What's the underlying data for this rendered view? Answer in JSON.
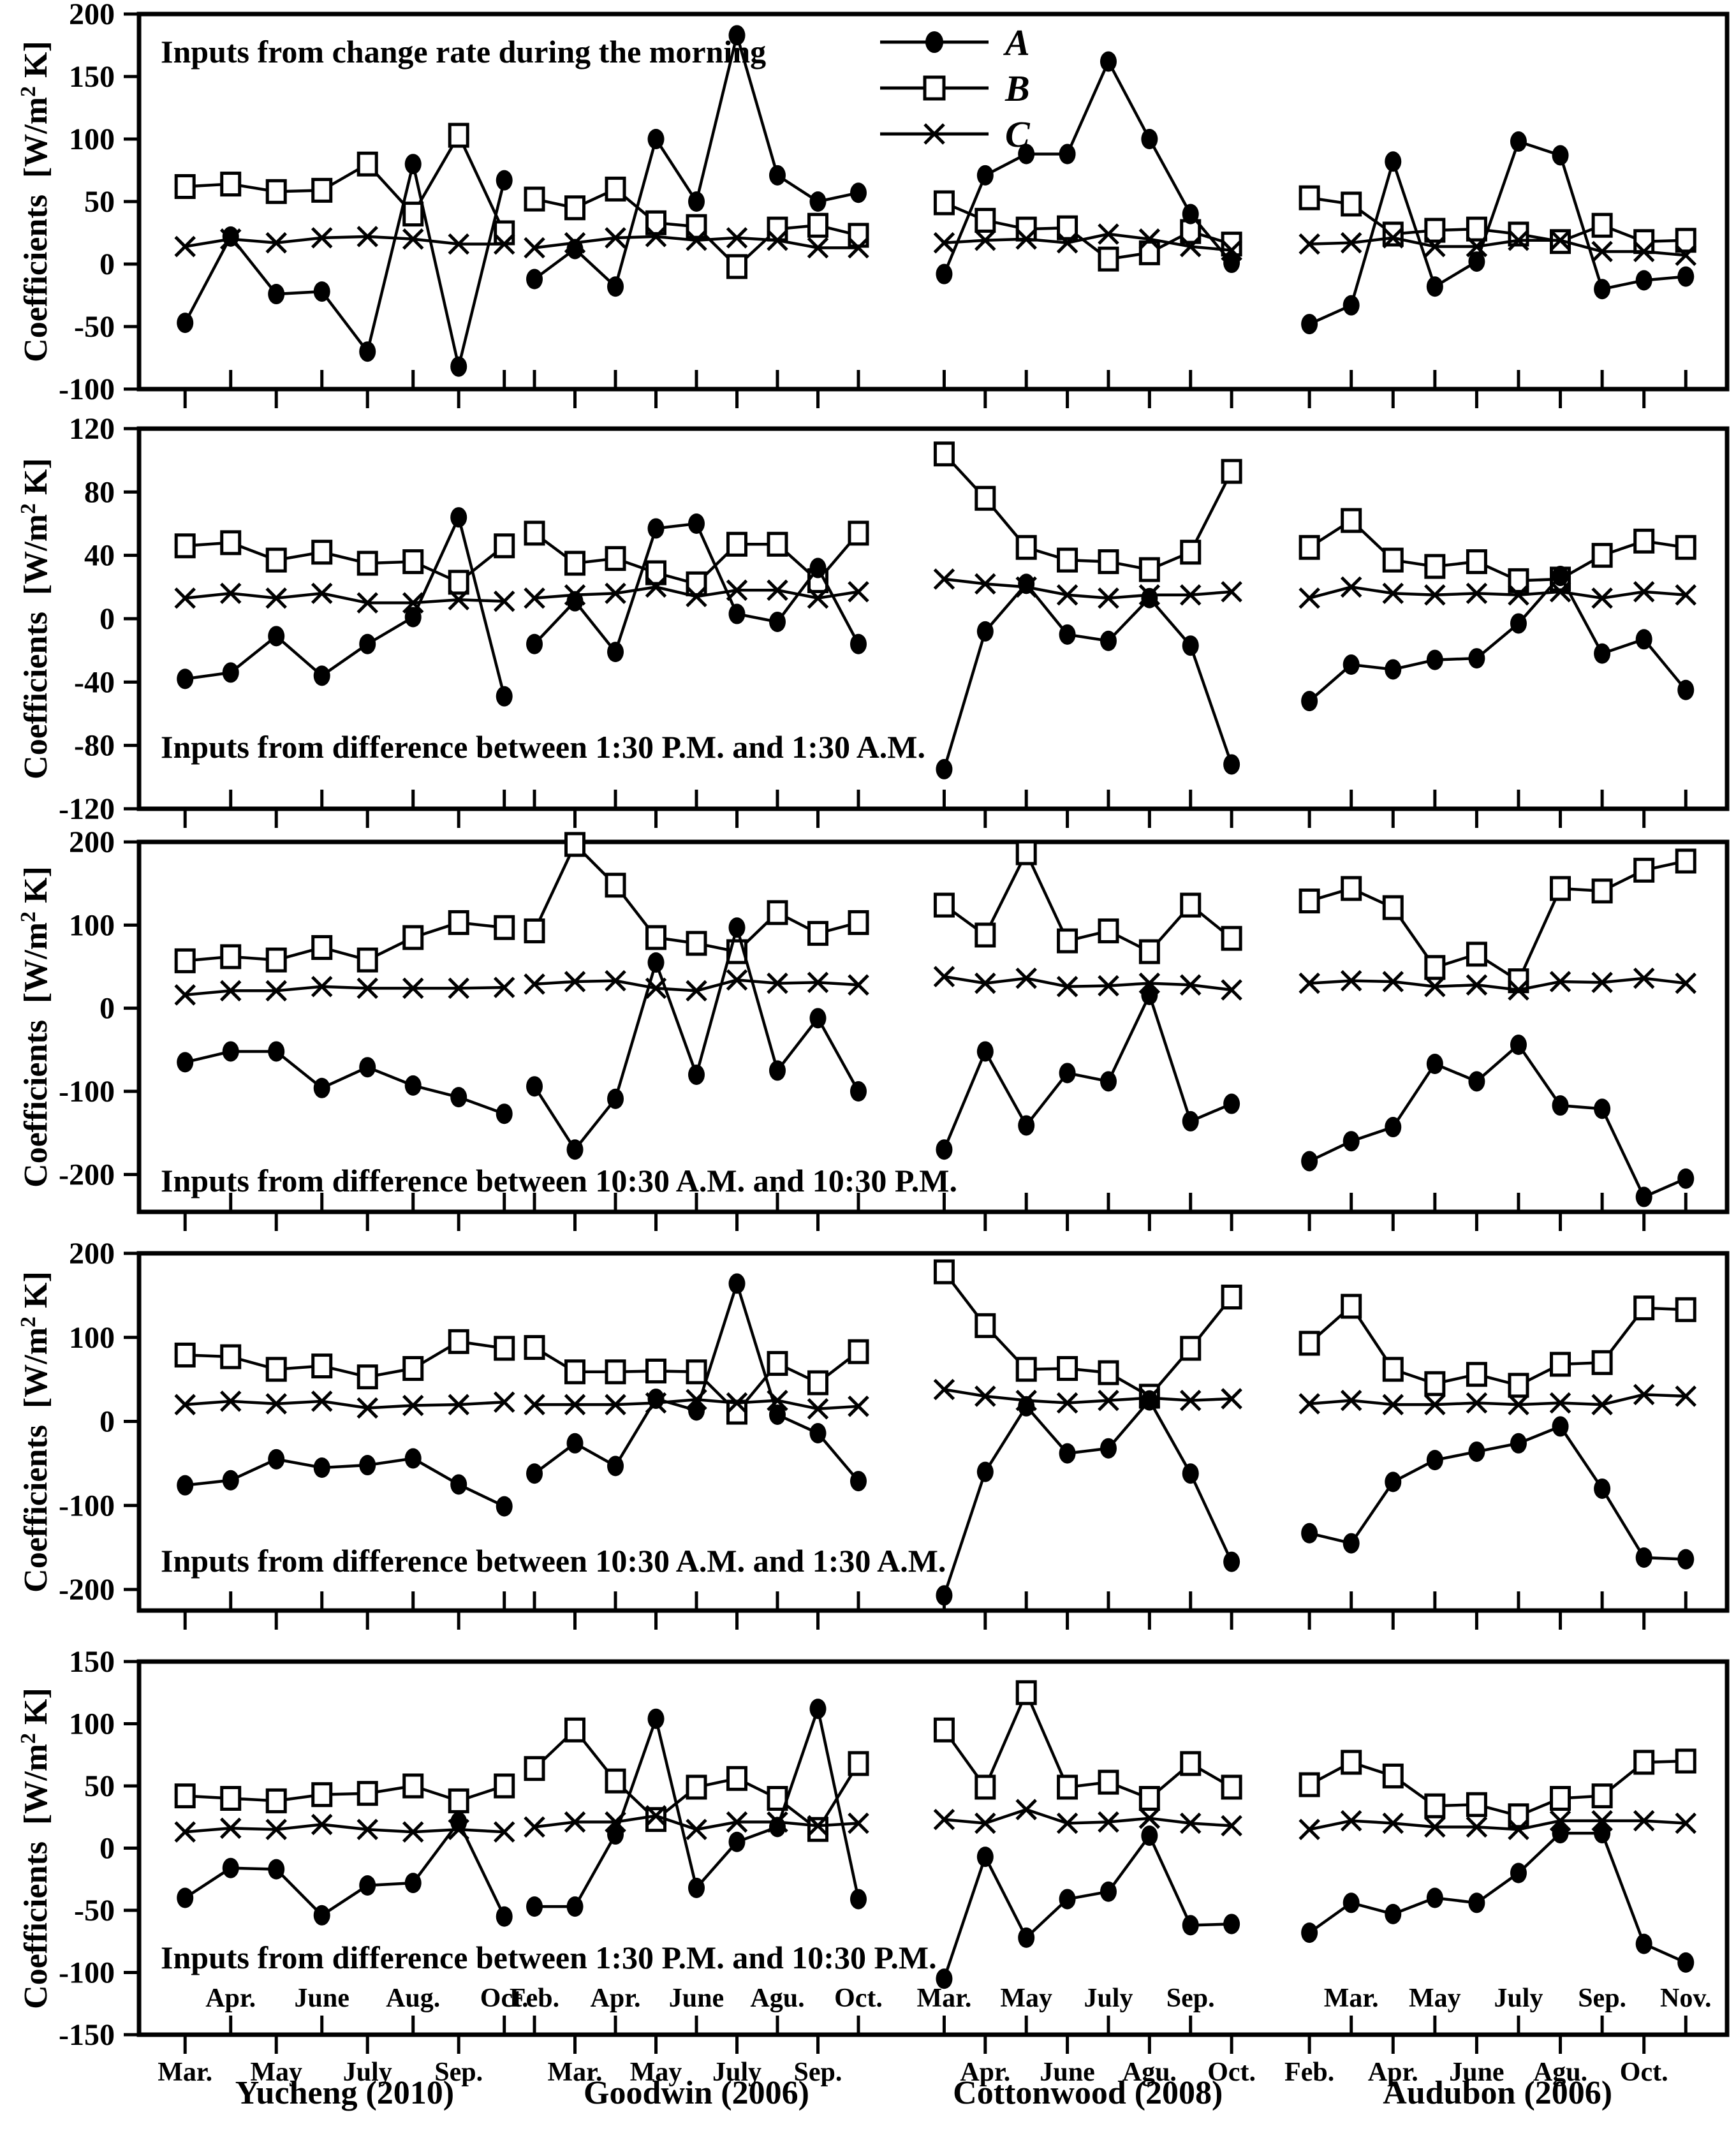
{
  "chart_data": {
    "type": "line",
    "title": "",
    "ylabel": "Coefficients [W/m2 K]",
    "ylabel_parts": {
      "word": "Coefficients",
      "unit_pre": "[W/m",
      "unit_sup": "2",
      "unit_post": " K]"
    },
    "legend_entries": [
      {
        "label": "A",
        "marker": "filled-circle"
      },
      {
        "label": "B",
        "marker": "open-square"
      },
      {
        "label": "C",
        "marker": "x-cross"
      }
    ],
    "colors": {
      "ink": "#000000",
      "paper": "#ffffff"
    },
    "grid": "off",
    "legend_position": "top-right-of-first-panel",
    "sites": [
      {
        "name": "Yucheng (2010)",
        "x0": 0.029,
        "x1": 0.23,
        "months": [
          [
            "Mar.",
            "b"
          ],
          [
            "Apr.",
            "t"
          ],
          [
            "May",
            "b"
          ],
          [
            "June",
            "t"
          ],
          [
            "July",
            "b"
          ],
          [
            "Aug.",
            "t"
          ],
          [
            "Sep.",
            "b"
          ],
          [
            "Oct.",
            "t"
          ]
        ]
      },
      {
        "name": "Goodwin (2006)",
        "x0": 0.249,
        "x1": 0.453,
        "months": [
          [
            "Feb.",
            "t"
          ],
          [
            "Mar.",
            "b"
          ],
          [
            "Apr.",
            "t"
          ],
          [
            "May",
            "b"
          ],
          [
            "June",
            "t"
          ],
          [
            "July",
            "b"
          ],
          [
            "Agu.",
            "t"
          ],
          [
            "Sep.",
            "b"
          ],
          [
            "Oct.",
            "t"
          ]
        ]
      },
      {
        "name": "Cottonwood (2008)",
        "x0": 0.507,
        "x1": 0.688,
        "months": [
          [
            "Mar.",
            "t"
          ],
          [
            "Apr.",
            "b"
          ],
          [
            "May",
            "t"
          ],
          [
            "June",
            "b"
          ],
          [
            "July",
            "t"
          ],
          [
            "Agu.",
            "b"
          ],
          [
            "Sep.",
            "t"
          ],
          [
            "Oct.",
            "b"
          ]
        ]
      },
      {
        "name": "Audubon (2006)",
        "x0": 0.737,
        "x1": 0.974,
        "months": [
          [
            "Feb.",
            "b"
          ],
          [
            "Mar.",
            "t"
          ],
          [
            "Apr.",
            "b"
          ],
          [
            "May",
            "t"
          ],
          [
            "June",
            "b"
          ],
          [
            "July",
            "t"
          ],
          [
            "Agu.",
            "b"
          ],
          [
            "Sep.",
            "t"
          ],
          [
            "Oct.",
            "b"
          ],
          [
            "Nov.",
            "t"
          ]
        ]
      }
    ],
    "panels": [
      {
        "caption": "Inputs from change rate during the morning",
        "ylim": [
          -100,
          200
        ],
        "yticks": [
          200,
          150,
          100,
          50,
          0,
          -50,
          -100
        ],
        "series": [
          {
            "A": [
              -47,
              22,
              -24,
              -22,
              -70,
              80,
              -82,
              67
            ],
            "B": [
              62,
              64,
              58,
              59,
              80,
              40,
              103,
              25
            ],
            "C": [
              14,
              20,
              17,
              21,
              22,
              20,
              16,
              16
            ]
          },
          {
            "A": [
              -12,
              12,
              -18,
              100,
              50,
              183,
              71,
              50,
              57
            ],
            "B": [
              52,
              45,
              60,
              33,
              30,
              -2,
              28,
              31,
              23
            ],
            "C": [
              13,
              17,
              21,
              22,
              19,
              21,
              19,
              13,
              13
            ]
          },
          {
            "A": [
              -8,
              71,
              88,
              88,
              162,
              100,
              40,
              1
            ],
            "B": [
              49,
              35,
              28,
              29,
              4,
              9,
              26,
              16
            ],
            "C": [
              17,
              19,
              20,
              17,
              24,
              20,
              14,
              11
            ]
          },
          {
            "A": [
              -48,
              -33,
              82,
              -18,
              2,
              98,
              87,
              -20,
              -13,
              -10
            ],
            "B": [
              53,
              48,
              24,
              27,
              28,
              24,
              18,
              31,
              18,
              19
            ],
            "C": [
              16,
              17,
              21,
              14,
              14,
              19,
              19,
              10,
              10,
              7
            ]
          }
        ]
      },
      {
        "caption": "Inputs from difference between 1:30 P.M. and 1:30 A.M.",
        "ylim": [
          -120,
          120
        ],
        "yticks": [
          120,
          80,
          40,
          0,
          -40,
          -80,
          -120
        ],
        "series": [
          {
            "A": [
              -38,
              -34,
              -11,
              -36,
              -16,
              1,
              64,
              -49
            ],
            "B": [
              46,
              48,
              37,
              42,
              35,
              36,
              23,
              46
            ],
            "C": [
              13,
              16,
              13,
              16,
              10,
              10,
              12,
              11
            ]
          },
          {
            "A": [
              -16,
              11,
              -21,
              57,
              60,
              3,
              -2,
              32,
              -16
            ],
            "B": [
              54,
              35,
              38,
              29,
              22,
              47,
              47,
              24,
              54
            ],
            "C": [
              13,
              15,
              16,
              20,
              14,
              18,
              18,
              13,
              17
            ]
          },
          {
            "A": [
              -95,
              -8,
              22,
              -10,
              -14,
              13,
              -17,
              -92
            ],
            "B": [
              104,
              76,
              45,
              37,
              36,
              31,
              42,
              93
            ],
            "C": [
              25,
              22,
              20,
              15,
              13,
              15,
              15,
              17
            ]
          },
          {
            "A": [
              -52,
              -29,
              -32,
              -26,
              -25,
              -3,
              27,
              -22,
              -13,
              -45
            ],
            "B": [
              45,
              62,
              37,
              33,
              36,
              24,
              25,
              40,
              49,
              45
            ],
            "C": [
              13,
              20,
              16,
              15,
              16,
              15,
              17,
              13,
              17,
              15
            ]
          }
        ]
      },
      {
        "caption": "Inputs from difference between 10:30 A.M. and 10:30 P.M.",
        "ylim": [
          -245,
          200
        ],
        "yticks": [
          200,
          100,
          0,
          -100,
          -200
        ],
        "series": [
          {
            "A": [
              -65,
              -52,
              -52,
              -96,
              -71,
              -93,
              -107,
              -127
            ],
            "B": [
              57,
              62,
              58,
              73,
              58,
              85,
              103,
              97
            ],
            "C": [
              16,
              21,
              21,
              26,
              24,
              24,
              24,
              25
            ]
          },
          {
            "A": [
              -94,
              -170,
              -109,
              55,
              -80,
              97,
              -75,
              -12,
              -100
            ],
            "B": [
              93,
              197,
              148,
              85,
              78,
              68,
              115,
              90,
              103
            ],
            "C": [
              29,
              32,
              33,
              24,
              21,
              34,
              30,
              31,
              28
            ]
          },
          {
            "A": [
              -170,
              -52,
              -141,
              -78,
              -88,
              16,
              -136,
              -115
            ],
            "B": [
              124,
              88,
              187,
              81,
              93,
              68,
              124,
              84
            ],
            "C": [
              38,
              30,
              36,
              26,
              27,
              30,
              28,
              22
            ]
          },
          {
            "A": [
              -184,
              -160,
              -143,
              -67,
              -88,
              -44,
              -117,
              -121,
              -227,
              -205
            ],
            "B": [
              129,
              144,
              121,
              49,
              65,
              33,
              144,
              141,
              166,
              177
            ],
            "C": [
              30,
              33,
              32,
              26,
              28,
              22,
              32,
              31,
              36,
              30
            ]
          }
        ]
      },
      {
        "caption": "Inputs from difference between 10:30 A.M. and 1:30 A.M.",
        "ylim": [
          -225,
          200
        ],
        "yticks": [
          200,
          100,
          0,
          -100,
          -200
        ],
        "series": [
          {
            "A": [
              -76,
              -70,
              -45,
              -55,
              -52,
              -44,
              -75,
              -101
            ],
            "B": [
              79,
              77,
              62,
              66,
              53,
              63,
              95,
              87
            ],
            "C": [
              20,
              24,
              21,
              24,
              16,
              19,
              20,
              23
            ]
          },
          {
            "A": [
              -62,
              -26,
              -53,
              27,
              13,
              164,
              8,
              -14,
              -71
            ],
            "B": [
              88,
              59,
              59,
              60,
              59,
              11,
              69,
              46,
              83
            ],
            "C": [
              20,
              20,
              20,
              22,
              26,
              22,
              25,
              15,
              18
            ]
          },
          {
            "A": [
              -207,
              -60,
              18,
              -38,
              -32,
              25,
              -62,
              -167
            ],
            "B": [
              178,
              114,
              62,
              63,
              58,
              30,
              87,
              148
            ],
            "C": [
              38,
              30,
              25,
              22,
              25,
              28,
              25,
              27
            ]
          },
          {
            "A": [
              -133,
              -145,
              -72,
              -46,
              -36,
              -26,
              -6,
              -80,
              -162,
              -164
            ],
            "B": [
              93,
              137,
              62,
              45,
              56,
              43,
              68,
              70,
              135,
              133
            ],
            "C": [
              21,
              25,
              20,
              20,
              22,
              20,
              22,
              20,
              32,
              30
            ]
          }
        ]
      },
      {
        "caption": "Inputs from difference between 1:30 P.M. and 10:30 P.M.",
        "ylim": [
          -150,
          150
        ],
        "yticks": [
          150,
          100,
          50,
          0,
          -50,
          -100,
          -150
        ],
        "series": [
          {
            "A": [
              -40,
              -16,
              -17,
              -54,
              -30,
              -28,
              21,
              -55
            ],
            "B": [
              42,
              40,
              38,
              43,
              44,
              50,
              38,
              50
            ],
            "C": [
              13,
              16,
              15,
              19,
              15,
              13,
              15,
              13
            ]
          },
          {
            "A": [
              -47,
              -47,
              11,
              104,
              -32,
              5,
              17,
              112,
              -41
            ],
            "B": [
              64,
              95,
              54,
              23,
              49,
              56,
              40,
              15,
              68
            ],
            "C": [
              17,
              21,
              21,
              26,
              15,
              21,
              21,
              18,
              20
            ]
          },
          {
            "A": [
              -105,
              -7,
              -72,
              -41,
              -35,
              10,
              -62,
              -61
            ],
            "B": [
              95,
              49,
              125,
              49,
              53,
              40,
              68,
              49
            ],
            "C": [
              23,
              20,
              31,
              20,
              21,
              24,
              20,
              18
            ]
          },
          {
            "A": [
              -68,
              -44,
              -53,
              -40,
              -44,
              -20,
              12,
              12,
              -77,
              -92
            ],
            "B": [
              51,
              69,
              58,
              34,
              35,
              26,
              40,
              42,
              69,
              70
            ],
            "C": [
              15,
              22,
              20,
              17,
              17,
              15,
              22,
              22,
              22,
              20
            ]
          }
        ]
      }
    ]
  }
}
